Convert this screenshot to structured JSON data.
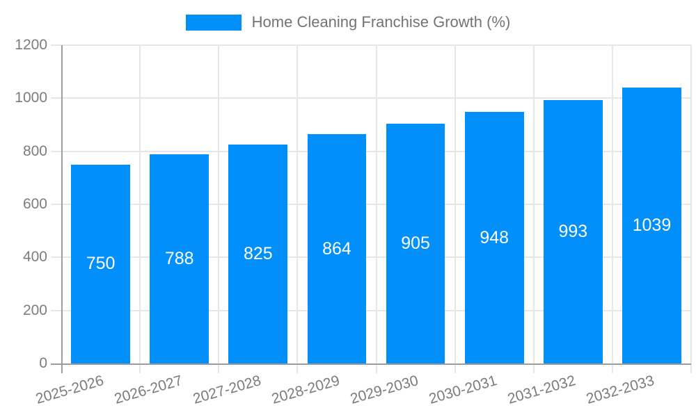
{
  "chart_data": {
    "type": "bar",
    "title": "Home Cleaning Franchise Growth (%)",
    "categories": [
      "2025-2026",
      "2026-2027",
      "2027-2028",
      "2028-2029",
      "2029-2030",
      "2030-2031",
      "2031-2032",
      "2032-2033"
    ],
    "values": [
      750,
      788,
      825,
      864,
      905,
      948,
      993,
      1039
    ],
    "xlabel": "",
    "ylabel": "",
    "ylim": [
      0,
      1200
    ],
    "y_ticks": [
      0,
      200,
      400,
      600,
      800,
      1000,
      1200
    ],
    "grid": true,
    "legend_position": "top-center",
    "value_label_position": "inside-center",
    "colors": {
      "bar": "#0190fb",
      "value_label": "#ffffff",
      "grid": "#e6e6e6",
      "axis": "#9c9c9c",
      "tick_label": "#7c7c7c",
      "legend_text": "#737373",
      "background": "#ffffff"
    }
  }
}
